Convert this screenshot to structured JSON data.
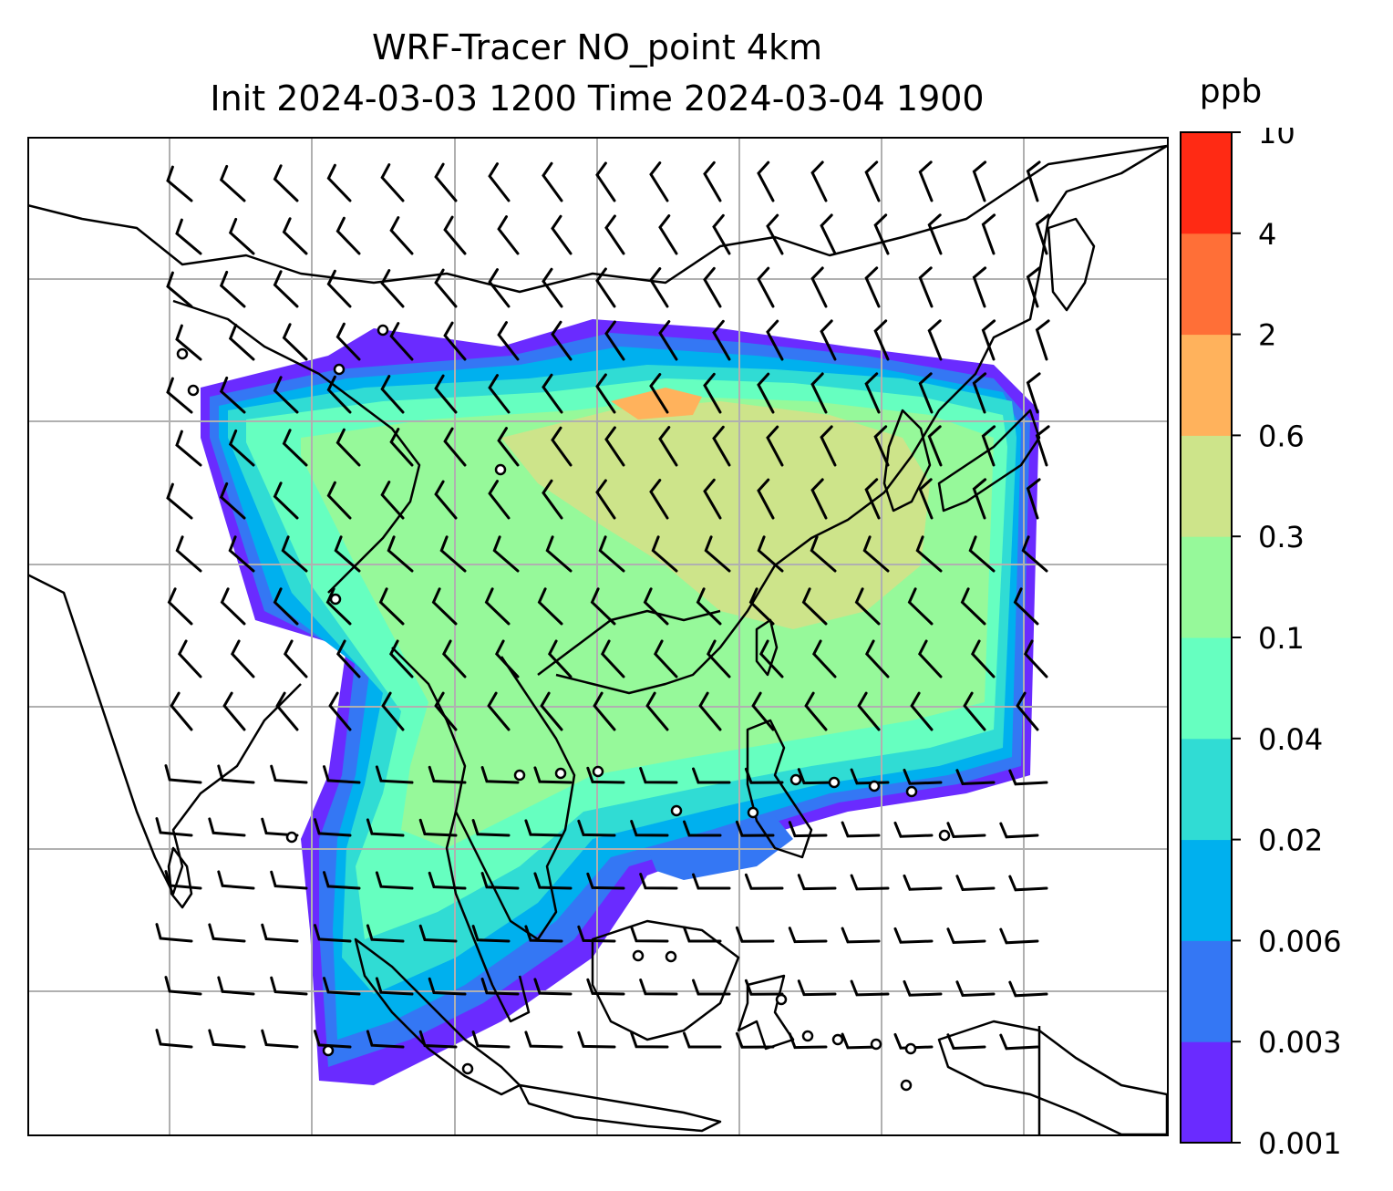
{
  "title": {
    "line1": "WRF-Tracer NO_point 4km",
    "line2": "Init 2024-03-03 1200 Time 2024-03-04 1900"
  },
  "colorbar": {
    "unit": "ppb",
    "ticks": [
      "0.001",
      "0.003",
      "0.006",
      "0.02",
      "0.04",
      "0.1",
      "0.3",
      "0.6",
      "2",
      "4",
      "10"
    ],
    "colors": [
      "#6a2bff",
      "#3477f4",
      "#00b0ee",
      "#30dcd4",
      "#66ffc0",
      "#96f99a",
      "#cde48a",
      "#ffb25c",
      "#ff6f37",
      "#ff2a14"
    ]
  },
  "map": {
    "background": "#ffffff",
    "coastline_color": "#000000",
    "grid_color": "#b0b0b0",
    "point_sources": 27
  }
}
